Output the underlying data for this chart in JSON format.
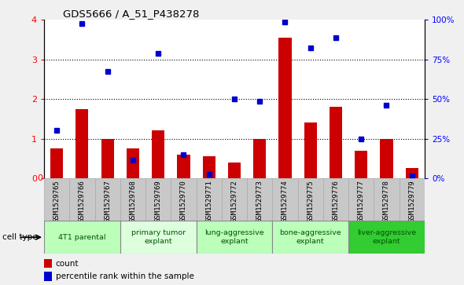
{
  "title": "GDS5666 / A_51_P438278",
  "samples": [
    "GSM1529765",
    "GSM1529766",
    "GSM1529767",
    "GSM1529768",
    "GSM1529769",
    "GSM1529770",
    "GSM1529771",
    "GSM1529772",
    "GSM1529773",
    "GSM1529774",
    "GSM1529775",
    "GSM1529776",
    "GSM1529777",
    "GSM1529778",
    "GSM1529779"
  ],
  "bar_values": [
    0.75,
    1.75,
    1.0,
    0.75,
    1.2,
    0.6,
    0.55,
    0.4,
    1.0,
    3.55,
    1.4,
    1.8,
    0.7,
    1.0,
    0.25
  ],
  "dot_percentiles": [
    30,
    97.5,
    67.5,
    11.25,
    78.75,
    15,
    2.5,
    50,
    48.75,
    98.75,
    82.5,
    88.75,
    25,
    46.25,
    1.25
  ],
  "cell_type_data": [
    {
      "label": "4T1 parental",
      "start": 0,
      "end": 2,
      "color": "#bbffbb"
    },
    {
      "label": "primary tumor\nexplant",
      "start": 3,
      "end": 5,
      "color": "#ddffdd"
    },
    {
      "label": "lung-aggressive\nexplant",
      "start": 6,
      "end": 8,
      "color": "#bbffbb"
    },
    {
      "label": "bone-aggressive\nexplant",
      "start": 9,
      "end": 11,
      "color": "#bbffbb"
    },
    {
      "label": "liver-aggressive\nexplant",
      "start": 12,
      "end": 14,
      "color": "#33cc33"
    }
  ],
  "bar_color": "#cc0000",
  "dot_color": "#0000cc",
  "ylim_left": [
    0,
    4
  ],
  "ylim_right": [
    0,
    100
  ],
  "yticks_left": [
    0,
    1,
    2,
    3,
    4
  ],
  "yticks_right": [
    0,
    25,
    50,
    75,
    100
  ],
  "yticklabels_right": [
    "0%",
    "25%",
    "50%",
    "75%",
    "100%"
  ],
  "bg_color": "#c8c8c8",
  "plot_bg_color": "#ffffff",
  "fig_bg_color": "#f0f0f0"
}
